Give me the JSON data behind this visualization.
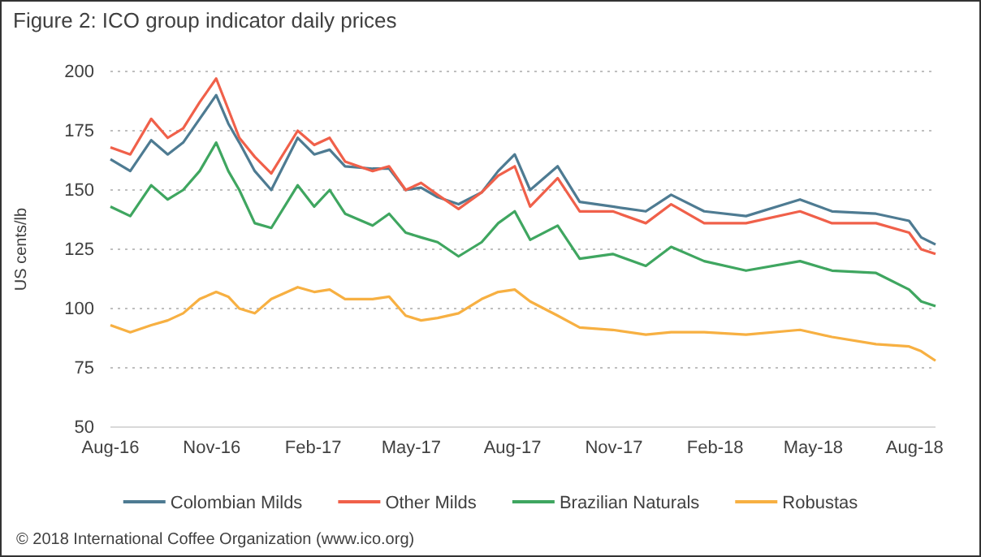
{
  "chart_data": {
    "type": "line",
    "title": "Figure 2: ICO group indicator daily prices",
    "ylabel": "US cents/lb",
    "x": [
      "2016-08-01",
      "2016-08-19",
      "2016-09-07",
      "2016-09-22",
      "2016-10-06",
      "2016-10-21",
      "2016-11-05",
      "2016-11-16",
      "2016-11-26",
      "2016-12-10",
      "2016-12-25",
      "2017-01-18",
      "2017-02-02",
      "2017-02-16",
      "2017-03-02",
      "2017-03-27",
      "2017-04-11",
      "2017-04-26",
      "2017-05-10",
      "2017-05-25",
      "2017-06-13",
      "2017-07-04",
      "2017-07-19",
      "2017-08-03",
      "2017-08-17",
      "2017-09-11",
      "2017-10-01",
      "2017-10-31",
      "2017-11-30",
      "2017-12-23",
      "2018-01-22",
      "2018-03-01",
      "2018-04-19",
      "2018-05-18",
      "2018-06-27",
      "2018-07-27",
      "2018-08-07",
      "2018-08-20"
    ],
    "series": [
      {
        "name": "Colombian Milds",
        "color": "#4e7b92",
        "values": [
          163,
          158,
          171,
          165,
          170,
          180,
          190,
          178,
          170,
          158,
          150,
          172,
          165,
          167,
          160,
          159,
          159,
          150,
          151,
          147,
          144,
          149,
          158,
          165,
          150,
          160,
          145,
          143,
          141,
          148,
          141,
          139,
          146,
          141,
          140,
          137,
          130,
          127
        ]
      },
      {
        "name": "Other Milds",
        "color": "#f0604a",
        "values": [
          168,
          165,
          180,
          172,
          176,
          187,
          197,
          184,
          172,
          164,
          157,
          175,
          169,
          172,
          162,
          158,
          160,
          150,
          153,
          148,
          142,
          149,
          156,
          160,
          143,
          155,
          141,
          141,
          136,
          144,
          136,
          136,
          141,
          136,
          136,
          132,
          125,
          123
        ]
      },
      {
        "name": "Brazilian Naturals",
        "color": "#3fa660",
        "values": [
          143,
          139,
          152,
          146,
          150,
          158,
          170,
          158,
          150,
          136,
          134,
          152,
          143,
          150,
          140,
          135,
          140,
          132,
          130,
          128,
          122,
          128,
          136,
          141,
          129,
          135,
          121,
          123,
          118,
          126,
          120,
          116,
          120,
          116,
          115,
          108,
          103,
          101
        ]
      },
      {
        "name": "Robustas",
        "color": "#f7b042",
        "values": [
          93,
          90,
          93,
          95,
          98,
          104,
          107,
          105,
          100,
          98,
          104,
          109,
          107,
          108,
          104,
          104,
          105,
          97,
          95,
          96,
          98,
          104,
          107,
          108,
          103,
          97,
          92,
          91,
          89,
          90,
          90,
          89,
          91,
          88,
          85,
          84,
          82,
          78
        ]
      }
    ],
    "xlim": [
      "2016-08-01",
      "2018-08-20"
    ],
    "xticks": [
      {
        "value": "2016-08-01",
        "label": "Aug-16"
      },
      {
        "value": "2016-11-01",
        "label": "Nov-16"
      },
      {
        "value": "2017-02-01",
        "label": "Feb-17"
      },
      {
        "value": "2017-05-01",
        "label": "May-17"
      },
      {
        "value": "2017-08-01",
        "label": "Aug-17"
      },
      {
        "value": "2017-11-01",
        "label": "Nov-17"
      },
      {
        "value": "2018-02-01",
        "label": "Feb-18"
      },
      {
        "value": "2018-05-01",
        "label": "May-18"
      },
      {
        "value": "2018-08-01",
        "label": "Aug-18"
      }
    ],
    "ylim": [
      50,
      200
    ],
    "yticks": [
      50,
      75,
      100,
      125,
      150,
      175,
      200
    ],
    "grid": "y",
    "legend": "bottom",
    "marker": "none",
    "line_style": "solid",
    "annotations": [
      "© 2018 International Coffee Organization (www.ico.org)"
    ]
  }
}
